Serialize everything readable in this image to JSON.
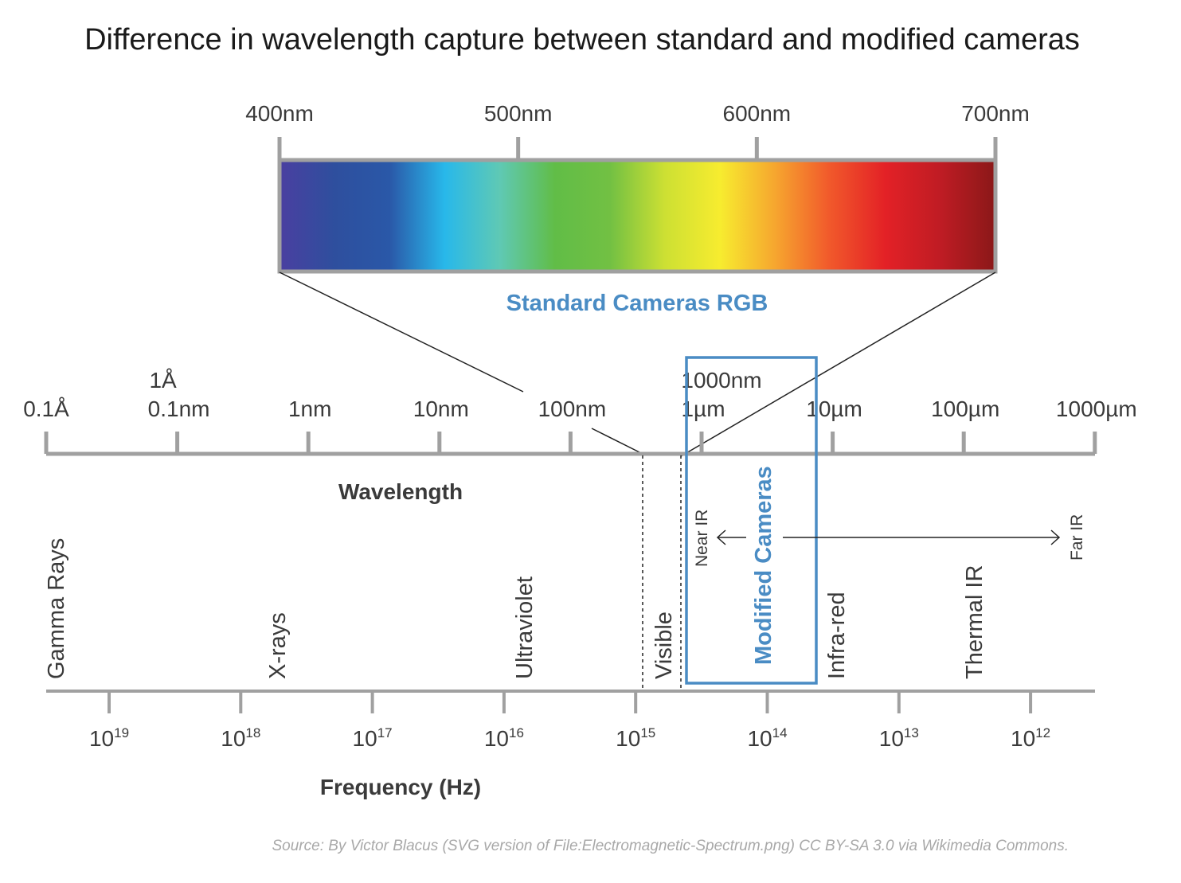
{
  "title": "Difference in wavelength capture between standard and modified cameras",
  "colors": {
    "accent": "#4a8cc4",
    "axis": "#a0a0a0",
    "text": "#3a3a3a",
    "source": "#a8a8a8"
  },
  "visible_band": {
    "ticks": [
      "400nm",
      "500nm",
      "600nm",
      "700nm"
    ],
    "label": "Standard Cameras RGB",
    "gradient": [
      "#4a3fa0",
      "#2e4f9e",
      "#2a58a8",
      "#28b8ea",
      "#5fc9b4",
      "#61bd47",
      "#72c043",
      "#cde033",
      "#f7ec2f",
      "#f6a62f",
      "#f1582b",
      "#e32126",
      "#bf1c24",
      "#8a1818"
    ]
  },
  "wavelength_axis": {
    "title": "Wavelength",
    "ticks": [
      {
        "label": "0.1Å",
        "label2": ""
      },
      {
        "label": "0.1nm",
        "label2": "1Å"
      },
      {
        "label": "1nm",
        "label2": ""
      },
      {
        "label": "10nm",
        "label2": ""
      },
      {
        "label": "100nm",
        "label2": ""
      },
      {
        "label": "1µm",
        "label2": "1000nm"
      },
      {
        "label": "10µm",
        "label2": ""
      },
      {
        "label": "100µm",
        "label2": ""
      },
      {
        "label": "1000µm",
        "label2": ""
      }
    ]
  },
  "regions": [
    {
      "label": "Gamma Rays"
    },
    {
      "label": "X-rays"
    },
    {
      "label": "Ultraviolet"
    },
    {
      "label": "Visible"
    },
    {
      "label": "Infra-red"
    },
    {
      "label": "Thermal IR"
    }
  ],
  "modified_cameras": {
    "label": "Modified Cameras",
    "near_ir": "Near IR",
    "far_ir": "Far IR"
  },
  "frequency_axis": {
    "title": "Frequency (Hz)",
    "ticks": [
      {
        "base": "10",
        "exp": "19"
      },
      {
        "base": "10",
        "exp": "18"
      },
      {
        "base": "10",
        "exp": "17"
      },
      {
        "base": "10",
        "exp": "16"
      },
      {
        "base": "10",
        "exp": "15"
      },
      {
        "base": "10",
        "exp": "14"
      },
      {
        "base": "10",
        "exp": "13"
      },
      {
        "base": "10",
        "exp": "12"
      }
    ]
  },
  "source": "Source: By Victor Blacus (SVG version of File:Electromagnetic-Spectrum.png) CC BY-SA 3.0 via Wikimedia Commons."
}
